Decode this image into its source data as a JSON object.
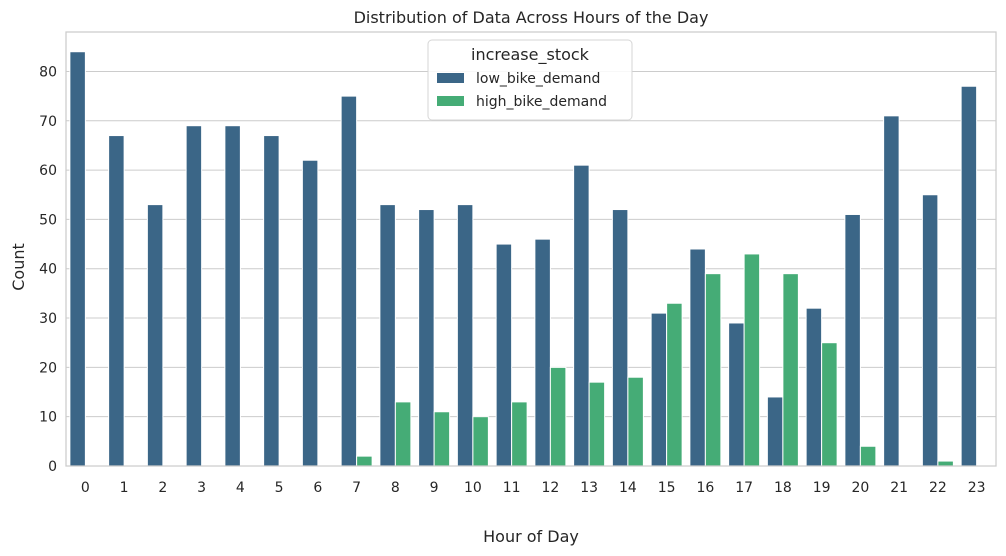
{
  "chart_data": {
    "type": "bar",
    "title": "Distribution of Data Across Hours of the Day",
    "xlabel": "Hour of Day",
    "ylabel": "Count",
    "ylim": [
      0,
      88
    ],
    "yticks": [
      0,
      10,
      20,
      30,
      40,
      50,
      60,
      70,
      80
    ],
    "grid": "horizontal",
    "legend": {
      "title": "increase_stock",
      "placement": "upper-center"
    },
    "categories": [
      "0",
      "1",
      "2",
      "3",
      "4",
      "5",
      "6",
      "7",
      "8",
      "9",
      "10",
      "11",
      "12",
      "13",
      "14",
      "15",
      "16",
      "17",
      "18",
      "19",
      "20",
      "21",
      "22",
      "23"
    ],
    "series": [
      {
        "name": "low_bike_demand",
        "color": "#3b6687",
        "values": [
          84,
          67,
          53,
          69,
          69,
          67,
          62,
          75,
          53,
          52,
          53,
          45,
          46,
          61,
          52,
          31,
          44,
          29,
          14,
          32,
          51,
          71,
          55,
          77
        ]
      },
      {
        "name": "high_bike_demand",
        "color": "#45ac76",
        "values": [
          0,
          0,
          0,
          0,
          0,
          0,
          0,
          2,
          13,
          11,
          10,
          13,
          20,
          17,
          18,
          33,
          39,
          43,
          39,
          25,
          4,
          0,
          1,
          0
        ]
      }
    ]
  }
}
